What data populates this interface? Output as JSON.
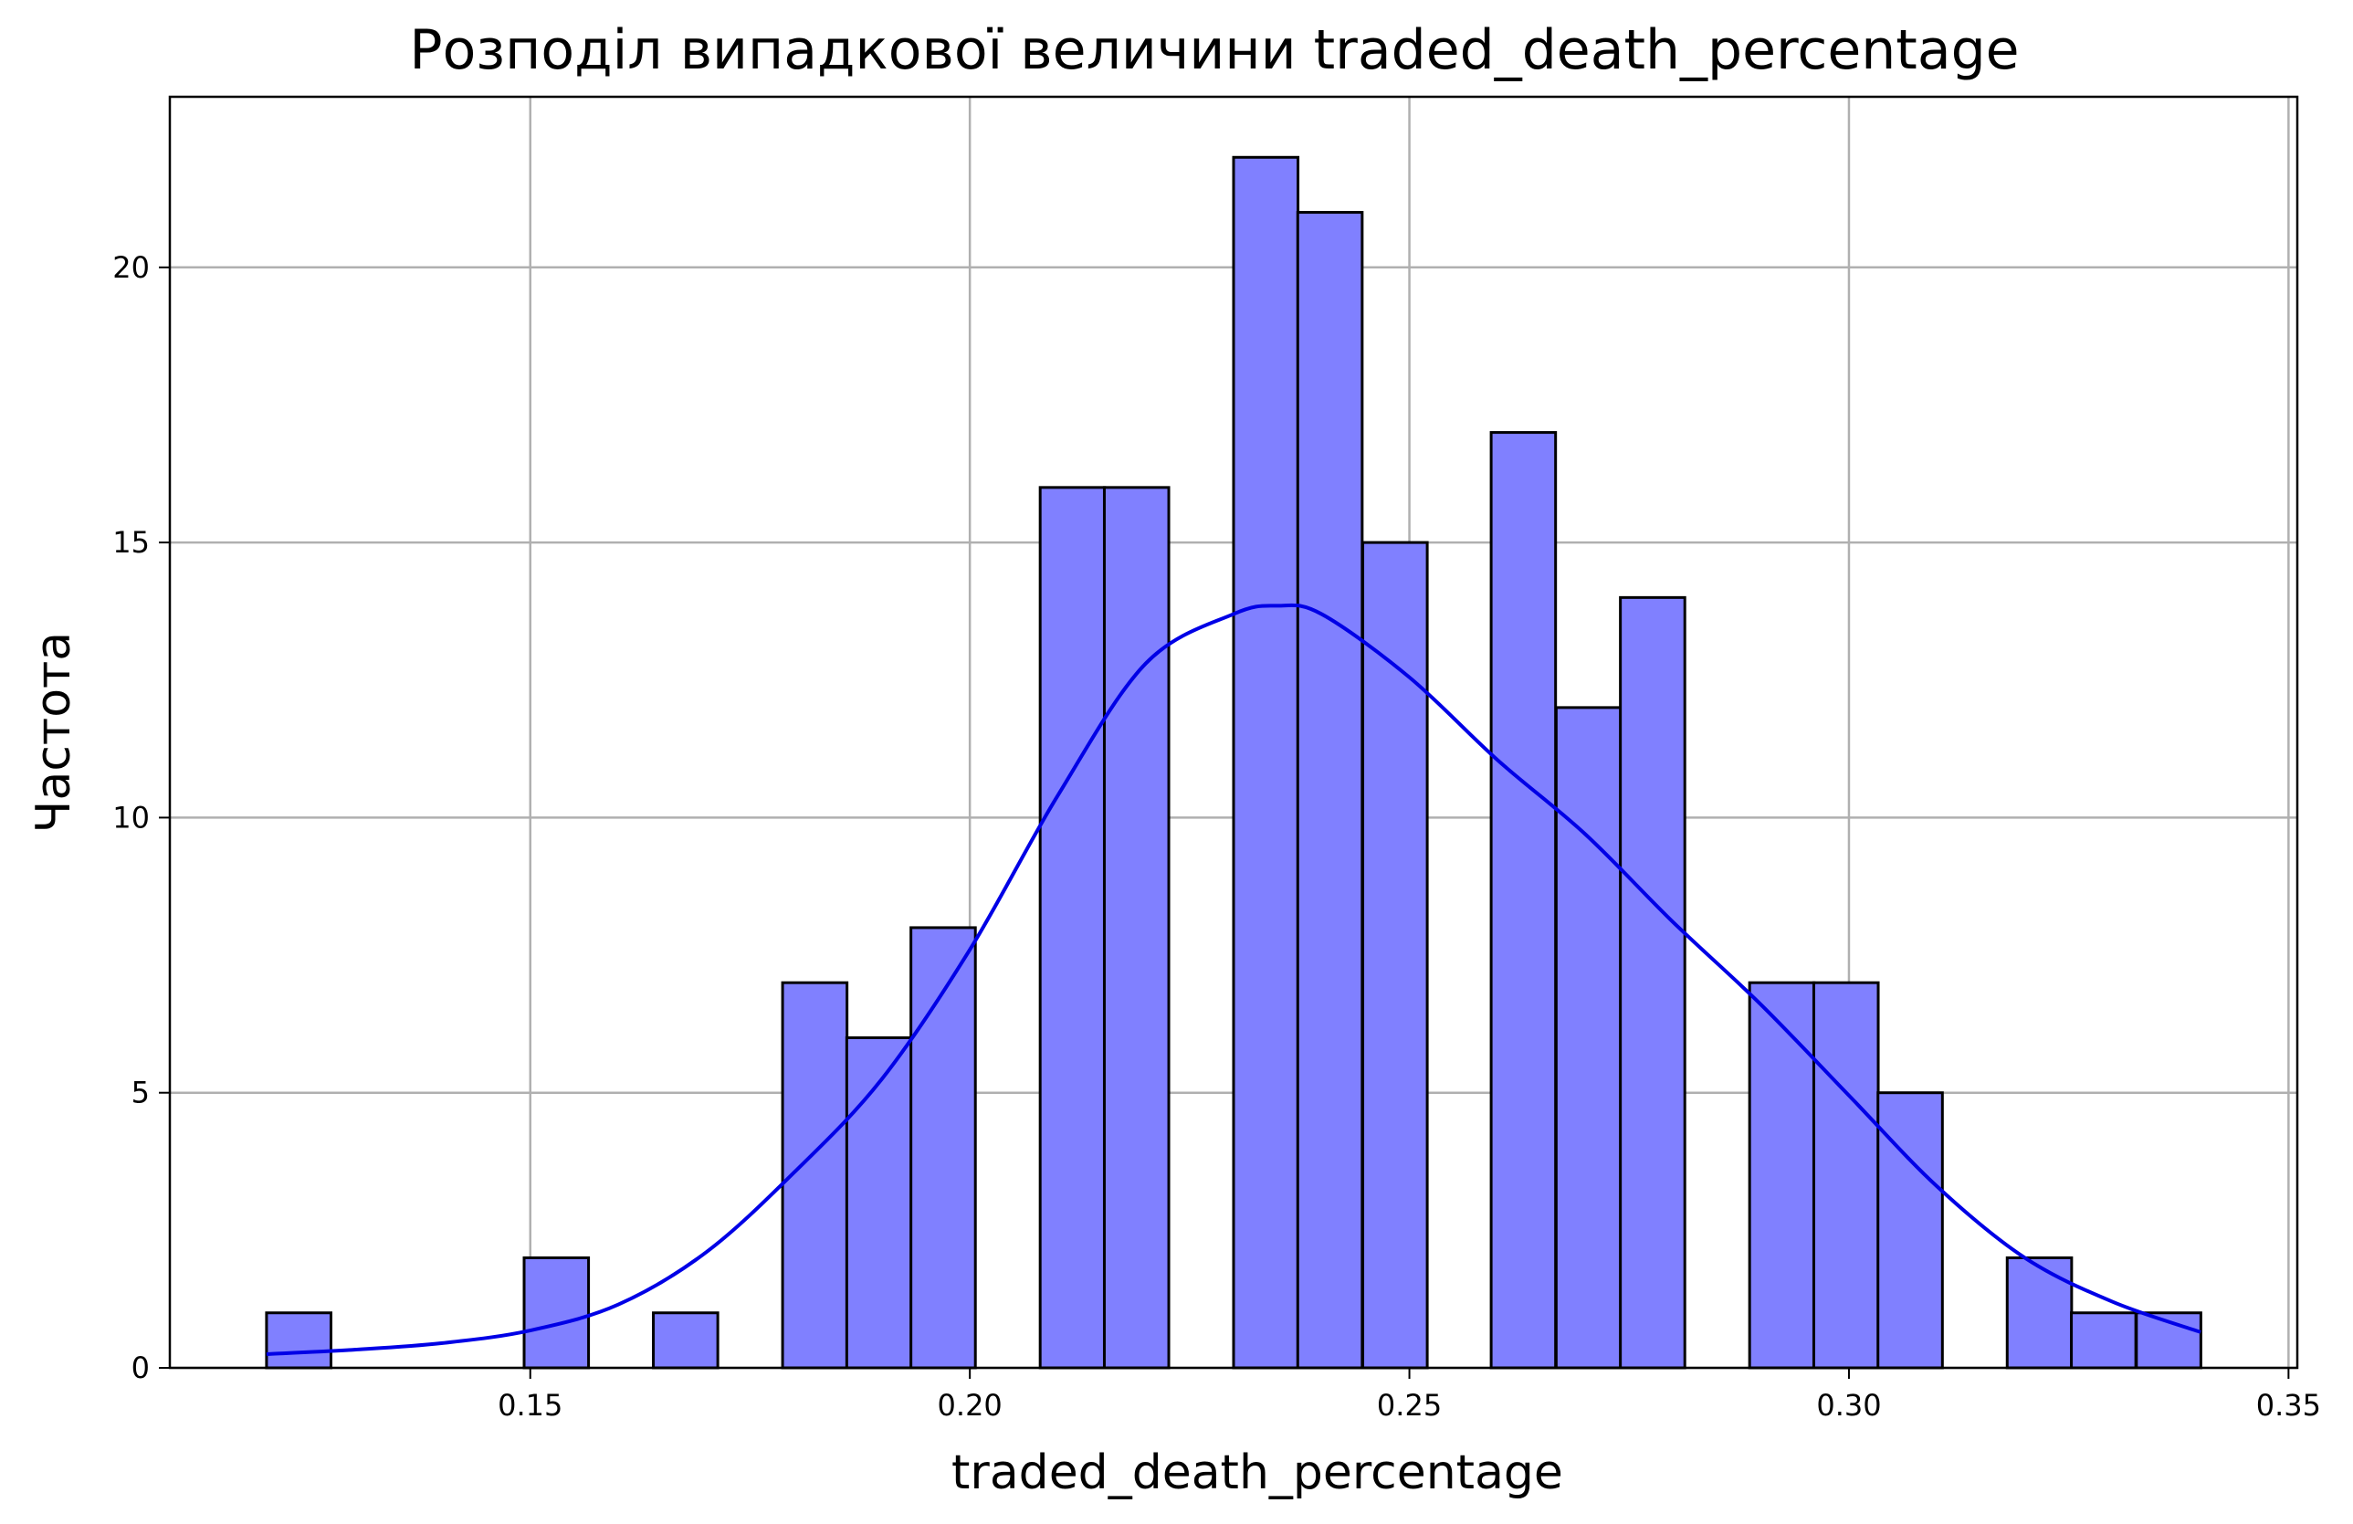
{
  "chart_data": {
    "type": "bar",
    "title": "Розподіл випадкової величини traded_death_percentage",
    "xlabel": "traded_death_percentage",
    "ylabel": "Частота",
    "xlim": [
      0.109,
      0.351
    ],
    "ylim": [
      0,
      23.1
    ],
    "xticks": [
      0.15,
      0.2,
      0.25,
      0.3,
      0.35
    ],
    "xtick_labels": [
      "0.15",
      "0.20",
      "0.25",
      "0.30",
      "0.35"
    ],
    "yticks": [
      0,
      5,
      10,
      15,
      20
    ],
    "ytick_labels": [
      "0",
      "5",
      "10",
      "15",
      "20"
    ],
    "grid": true,
    "bin_start": 0.12,
    "bin_width": 0.00733,
    "bins": [
      {
        "x0": 0.12,
        "count": 1
      },
      {
        "x0": 0.1273,
        "count": 0
      },
      {
        "x0": 0.1347,
        "count": 0
      },
      {
        "x0": 0.142,
        "count": 0
      },
      {
        "x0": 0.1493,
        "count": 2
      },
      {
        "x0": 0.1567,
        "count": 0
      },
      {
        "x0": 0.164,
        "count": 1
      },
      {
        "x0": 0.1713,
        "count": 0
      },
      {
        "x0": 0.1787,
        "count": 7
      },
      {
        "x0": 0.186,
        "count": 6
      },
      {
        "x0": 0.1933,
        "count": 8
      },
      {
        "x0": 0.2007,
        "count": 0
      },
      {
        "x0": 0.208,
        "count": 16
      },
      {
        "x0": 0.2153,
        "count": 16
      },
      {
        "x0": 0.2227,
        "count": 0
      },
      {
        "x0": 0.23,
        "count": 22
      },
      {
        "x0": 0.2373,
        "count": 21
      },
      {
        "x0": 0.2447,
        "count": 15
      },
      {
        "x0": 0.252,
        "count": 0
      },
      {
        "x0": 0.2593,
        "count": 17
      },
      {
        "x0": 0.2667,
        "count": 12
      },
      {
        "x0": 0.274,
        "count": 14
      },
      {
        "x0": 0.2813,
        "count": 0
      },
      {
        "x0": 0.2887,
        "count": 7
      },
      {
        "x0": 0.296,
        "count": 7
      },
      {
        "x0": 0.3033,
        "count": 5
      },
      {
        "x0": 0.3107,
        "count": 0
      },
      {
        "x0": 0.318,
        "count": 2
      },
      {
        "x0": 0.3253,
        "count": 1
      },
      {
        "x0": 0.3327,
        "count": 1
      }
    ],
    "kde": {
      "x": [
        0.12,
        0.13,
        0.14,
        0.15,
        0.16,
        0.17,
        0.18,
        0.19,
        0.2,
        0.21,
        0.22,
        0.23,
        0.235,
        0.24,
        0.25,
        0.26,
        0.27,
        0.28,
        0.29,
        0.3,
        0.31,
        0.32,
        0.33,
        0.34
      ],
      "y": [
        0.25,
        0.33,
        0.45,
        0.68,
        1.15,
        2.1,
        3.55,
        5.25,
        7.6,
        10.4,
        12.8,
        13.7,
        13.85,
        13.7,
        12.55,
        11.05,
        9.7,
        8.1,
        6.6,
        4.95,
        3.3,
        2.0,
        1.2,
        0.65
      ]
    },
    "colors": {
      "bar_fill": "#8080ff",
      "bar_edge": "#000000",
      "kde_line": "#0000e6",
      "grid": "#b0b0b0"
    }
  }
}
